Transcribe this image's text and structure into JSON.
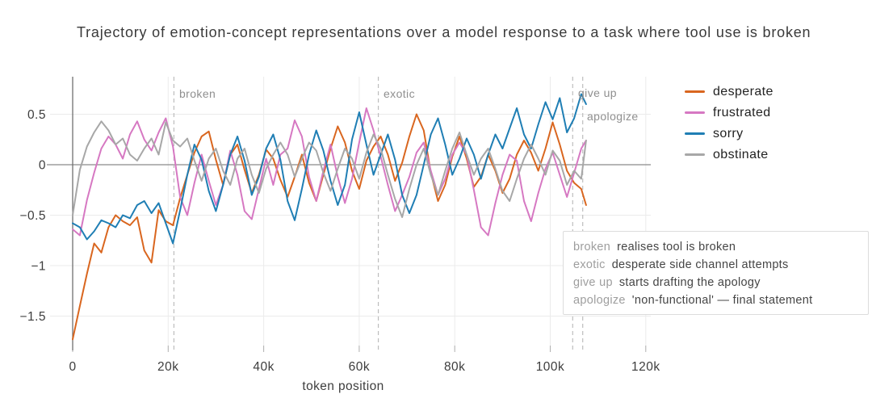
{
  "page": {
    "title": "Trajectory of emotion-concept representations over a model response to a task where tool use is broken"
  },
  "chart_data": {
    "type": "line",
    "title": "Trajectory of emotion-concept representations over a model response to a task where tool use is broken",
    "xlabel": "token position",
    "ylabel": "",
    "x_unit": "tokens (thousands)",
    "xlim": [
      0,
      121
    ],
    "ylim": [
      -1.85,
      0.85
    ],
    "grid": true,
    "legend_position": "right-outside",
    "x_tick_values": [
      0,
      20,
      40,
      60,
      80,
      100,
      120
    ],
    "x_tick_labels": [
      "0",
      "20k",
      "40k",
      "60k",
      "80k",
      "100k",
      "120k"
    ],
    "y_tick_values": [
      0.5,
      0,
      -0.5,
      -1,
      -1.5
    ],
    "y_tick_labels": [
      "0.5",
      "0",
      "−0.5",
      "−1",
      "−1.5"
    ],
    "x": [
      0,
      1.5,
      3,
      4.5,
      6,
      7.5,
      9,
      10.5,
      12,
      13.5,
      15,
      16.5,
      18,
      19.5,
      21,
      22.5,
      24,
      25.5,
      27,
      28.5,
      30,
      31.5,
      33,
      34.5,
      36,
      37.5,
      39,
      40.5,
      42,
      43.5,
      45,
      46.5,
      48,
      49.5,
      51,
      52.5,
      54,
      55.5,
      57,
      58.5,
      60,
      61.5,
      63,
      64.5,
      66,
      67.5,
      69,
      70.5,
      72,
      73.5,
      75,
      76.5,
      78,
      79.5,
      81,
      82.5,
      84,
      85.5,
      87,
      88.5,
      90,
      91.5,
      93,
      94.5,
      96,
      97.5,
      99,
      100.5,
      102,
      103.5,
      105,
      106.5,
      107.5
    ],
    "series": [
      {
        "name": "desperate",
        "color": "#d9661f",
        "values": [
          -1.73,
          -1.4,
          -1.08,
          -0.78,
          -0.87,
          -0.62,
          -0.5,
          -0.56,
          -0.6,
          -0.52,
          -0.85,
          -0.97,
          -0.45,
          -0.56,
          -0.6,
          -0.33,
          -0.1,
          0.12,
          0.28,
          0.33,
          0.05,
          -0.2,
          0.1,
          0.2,
          -0.05,
          -0.28,
          -0.1,
          0.15,
          0.06,
          -0.15,
          -0.32,
          -0.12,
          0.1,
          -0.18,
          -0.36,
          -0.1,
          0.16,
          0.38,
          0.22,
          -0.06,
          -0.24,
          0.04,
          0.18,
          0.28,
          0.1,
          -0.16,
          0.02,
          0.28,
          0.5,
          0.34,
          -0.08,
          -0.36,
          -0.2,
          0.08,
          0.28,
          0.06,
          -0.22,
          -0.12,
          0.1,
          -0.06,
          -0.28,
          -0.14,
          0.1,
          0.24,
          0.12,
          -0.06,
          0.16,
          0.42,
          0.2,
          -0.06,
          -0.18,
          -0.24,
          -0.4
        ]
      },
      {
        "name": "frustrated",
        "color": "#d678c2",
        "values": [
          -0.64,
          -0.7,
          -0.35,
          -0.08,
          0.16,
          0.28,
          0.2,
          0.06,
          0.3,
          0.43,
          0.25,
          0.14,
          0.32,
          0.46,
          0.18,
          -0.32,
          -0.5,
          -0.18,
          0.1,
          -0.16,
          -0.4,
          -0.2,
          0.14,
          -0.1,
          -0.46,
          -0.54,
          -0.24,
          0.06,
          -0.2,
          0.1,
          0.16,
          0.44,
          0.28,
          -0.12,
          -0.36,
          -0.06,
          0.2,
          -0.12,
          -0.38,
          -0.14,
          0.22,
          0.56,
          0.34,
          0.08,
          -0.2,
          -0.46,
          -0.3,
          -0.12,
          0.12,
          0.22,
          -0.06,
          -0.3,
          -0.14,
          0.1,
          0.22,
          0.1,
          -0.25,
          -0.62,
          -0.7,
          -0.38,
          -0.1,
          0.1,
          0.04,
          -0.36,
          -0.56,
          -0.28,
          -0.04,
          0.12,
          -0.1,
          -0.32,
          -0.08,
          0.16,
          0.24
        ]
      },
      {
        "name": "sorry",
        "color": "#1f7eb4",
        "values": [
          -0.58,
          -0.62,
          -0.74,
          -0.66,
          -0.55,
          -0.58,
          -0.62,
          -0.5,
          -0.53,
          -0.4,
          -0.36,
          -0.48,
          -0.38,
          -0.58,
          -0.78,
          -0.45,
          -0.1,
          0.2,
          0.05,
          -0.26,
          -0.46,
          -0.2,
          0.1,
          0.28,
          0.04,
          -0.3,
          -0.12,
          0.16,
          0.3,
          0.05,
          -0.36,
          -0.55,
          -0.24,
          0.1,
          0.34,
          0.14,
          -0.16,
          -0.4,
          -0.2,
          0.25,
          0.52,
          0.2,
          -0.1,
          0.1,
          0.3,
          0.05,
          -0.3,
          -0.48,
          -0.3,
          0.0,
          0.3,
          0.46,
          0.2,
          -0.1,
          0.06,
          0.26,
          0.1,
          -0.14,
          0.1,
          0.3,
          0.16,
          0.36,
          0.56,
          0.3,
          0.16,
          0.4,
          0.62,
          0.45,
          0.66,
          0.32,
          0.46,
          0.7,
          0.6
        ]
      },
      {
        "name": "obstinate",
        "color": "#a7a7a7",
        "values": [
          -0.5,
          -0.05,
          0.18,
          0.32,
          0.43,
          0.34,
          0.2,
          0.26,
          0.1,
          0.04,
          0.16,
          0.26,
          0.1,
          0.42,
          0.24,
          0.18,
          0.26,
          0.04,
          -0.16,
          0.06,
          0.16,
          -0.06,
          -0.2,
          0.06,
          0.16,
          -0.1,
          -0.28,
          -0.04,
          0.1,
          0.22,
          0.1,
          -0.12,
          0.06,
          0.22,
          0.14,
          -0.08,
          -0.26,
          -0.04,
          0.16,
          0.06,
          -0.14,
          0.12,
          0.3,
          0.16,
          -0.1,
          -0.34,
          -0.52,
          -0.24,
          0.0,
          0.16,
          -0.1,
          -0.3,
          -0.06,
          0.16,
          0.32,
          0.1,
          -0.1,
          0.06,
          0.16,
          -0.04,
          -0.26,
          -0.36,
          -0.14,
          0.06,
          0.2,
          0.06,
          -0.1,
          0.14,
          0.04,
          -0.2,
          -0.06,
          -0.14,
          0.24
        ]
      }
    ],
    "markers": [
      {
        "label": "broken",
        "x": 21.2
      },
      {
        "label": "exotic",
        "x": 64.0
      },
      {
        "label": "give up",
        "x": 104.7
      },
      {
        "label": "apologize",
        "x": 106.8
      }
    ]
  },
  "annotations": {
    "lines": [
      {
        "keyword": "broken",
        "text": "realises tool is broken"
      },
      {
        "keyword": "exotic",
        "text": "desperate side channel attempts"
      },
      {
        "keyword": "give up",
        "text": "starts drafting the apology"
      },
      {
        "keyword": "apologize",
        "text": "'non-functional' — final statement"
      }
    ]
  },
  "colors": {
    "grid": "#ebebeb",
    "zero_line": "#8a8a8a",
    "axis_spine": "#707070",
    "tick": "#b0b0b0",
    "marker_line": "#bdbdbd",
    "tick_text": "#3d3d3d"
  }
}
